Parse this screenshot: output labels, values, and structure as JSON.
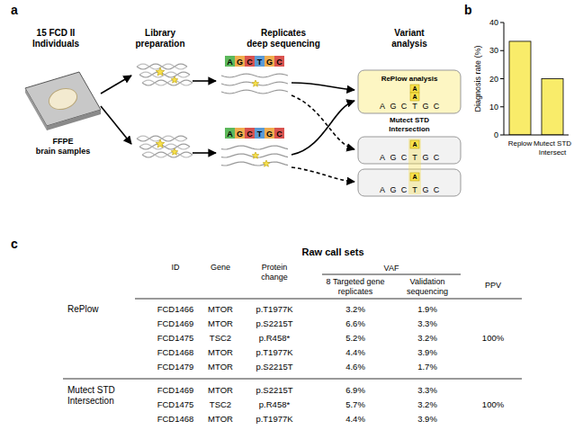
{
  "panel_labels": [
    "a",
    "b",
    "c"
  ],
  "workflow": {
    "steps": [
      [
        "15 FCD II",
        "Individuals"
      ],
      [
        "Library",
        "preparation"
      ],
      [
        "Replicates",
        "deep sequencing"
      ],
      [
        "Variant",
        "analysis"
      ]
    ],
    "sample_label": [
      "FFPE",
      "brain samples"
    ],
    "sequence": [
      "A",
      "G",
      "C",
      "T",
      "G",
      "C"
    ],
    "alt": "A",
    "analyses": [
      [
        "RePlow analysis"
      ],
      [
        "Mutect STD",
        "Intersection"
      ]
    ]
  },
  "chart_data": {
    "type": "bar",
    "categories": [
      "Replow",
      "Mutect STD Intersect"
    ],
    "values": [
      33.3,
      20
    ],
    "color": "#f9ec6a",
    "ylim": [
      0,
      40
    ],
    "yticks": [
      0,
      10,
      20,
      30,
      40
    ],
    "y_label": "Diagnosis rate (%)"
  },
  "table": {
    "title": "Raw call sets",
    "columns": [
      [
        "ID"
      ],
      [
        "Gene"
      ],
      [
        "Protein",
        "change"
      ],
      [
        "8 Targeted gene",
        "replicates"
      ],
      [
        "Validation",
        "sequencing"
      ],
      [
        "PPV"
      ]
    ],
    "group_header": "VAF",
    "groups": [
      {
        "name": [
          "RePlow"
        ],
        "ppv": "100%",
        "rows": [
          [
            "FCD1466",
            "MTOR",
            "p.T1977K",
            "3.2%",
            "1.9%"
          ],
          [
            "FCD1469",
            "MTOR",
            "p.S2215T",
            "6.6%",
            "3.3%"
          ],
          [
            "FCD1475",
            "TSC2",
            "p.R458*",
            "5.2%",
            "3.2%"
          ],
          [
            "FCD1468",
            "MTOR",
            "p.T1977K",
            "4.4%",
            "3.9%"
          ],
          [
            "FCD1479",
            "MTOR",
            "p.S2215T",
            "4.6%",
            "1.7%"
          ]
        ]
      },
      {
        "name": [
          "Mutect STD",
          "Intersection"
        ],
        "ppv": "100%",
        "rows": [
          [
            "FCD1469",
            "MTOR",
            "p.S2215T",
            "6.9%",
            "3.3%"
          ],
          [
            "FCD1475",
            "TSC2",
            "p.R458*",
            "5.7%",
            "3.2%"
          ],
          [
            "FCD1468",
            "MTOR",
            "p.T1977K",
            "4.4%",
            "3.9%"
          ]
        ]
      }
    ]
  }
}
